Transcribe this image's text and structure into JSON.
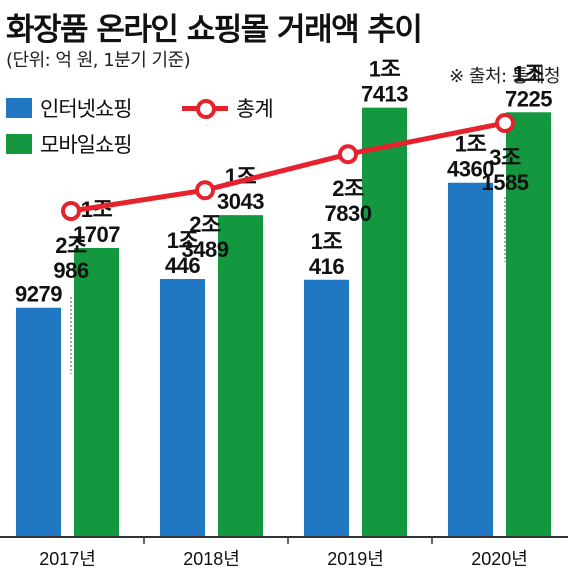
{
  "header": {
    "title": "화장품 온라인 쇼핑몰 거래액 추이",
    "subtitle": "(단위: 억 원, 1분기 기준)",
    "source": "※ 출처: 통계청"
  },
  "legend": {
    "internet": "인터넷쇼핑",
    "mobile": "모바일쇼핑",
    "total": "총계"
  },
  "colors": {
    "internet": "#1f78c1",
    "mobile": "#13973f",
    "total": "#e6222c"
  },
  "chart_data": {
    "type": "bar",
    "title": "화장품 온라인 쇼핑몰 거래액 추이",
    "subtitle": "(단위: 억 원, 1분기 기준)",
    "categories": [
      "2017년",
      "2018년",
      "2019년",
      "2020년"
    ],
    "series": [
      {
        "name": "인터넷쇼핑",
        "type": "bar",
        "values": [
          9279,
          10446,
          10416,
          14360
        ],
        "labels": [
          [
            "9279"
          ],
          [
            "1조",
            "446"
          ],
          [
            "1조",
            "416"
          ],
          [
            "1조",
            "4360"
          ]
        ]
      },
      {
        "name": "모바일쇼핑",
        "type": "bar",
        "values": [
          11707,
          13043,
          17413,
          17225
        ],
        "labels": [
          [
            "1조",
            "1707"
          ],
          [
            "1조",
            "3043"
          ],
          [
            "1조",
            "7413"
          ],
          [
            "1조",
            "7225"
          ]
        ]
      },
      {
        "name": "총계",
        "type": "line",
        "values": [
          20986,
          23489,
          27830,
          31585
        ],
        "labels": [
          [
            "2조",
            "986"
          ],
          [
            "2조",
            "3489"
          ],
          [
            "2조",
            "7830"
          ],
          [
            "3조",
            "1585"
          ]
        ]
      }
    ],
    "grid": false,
    "legend_position": "top-left"
  }
}
